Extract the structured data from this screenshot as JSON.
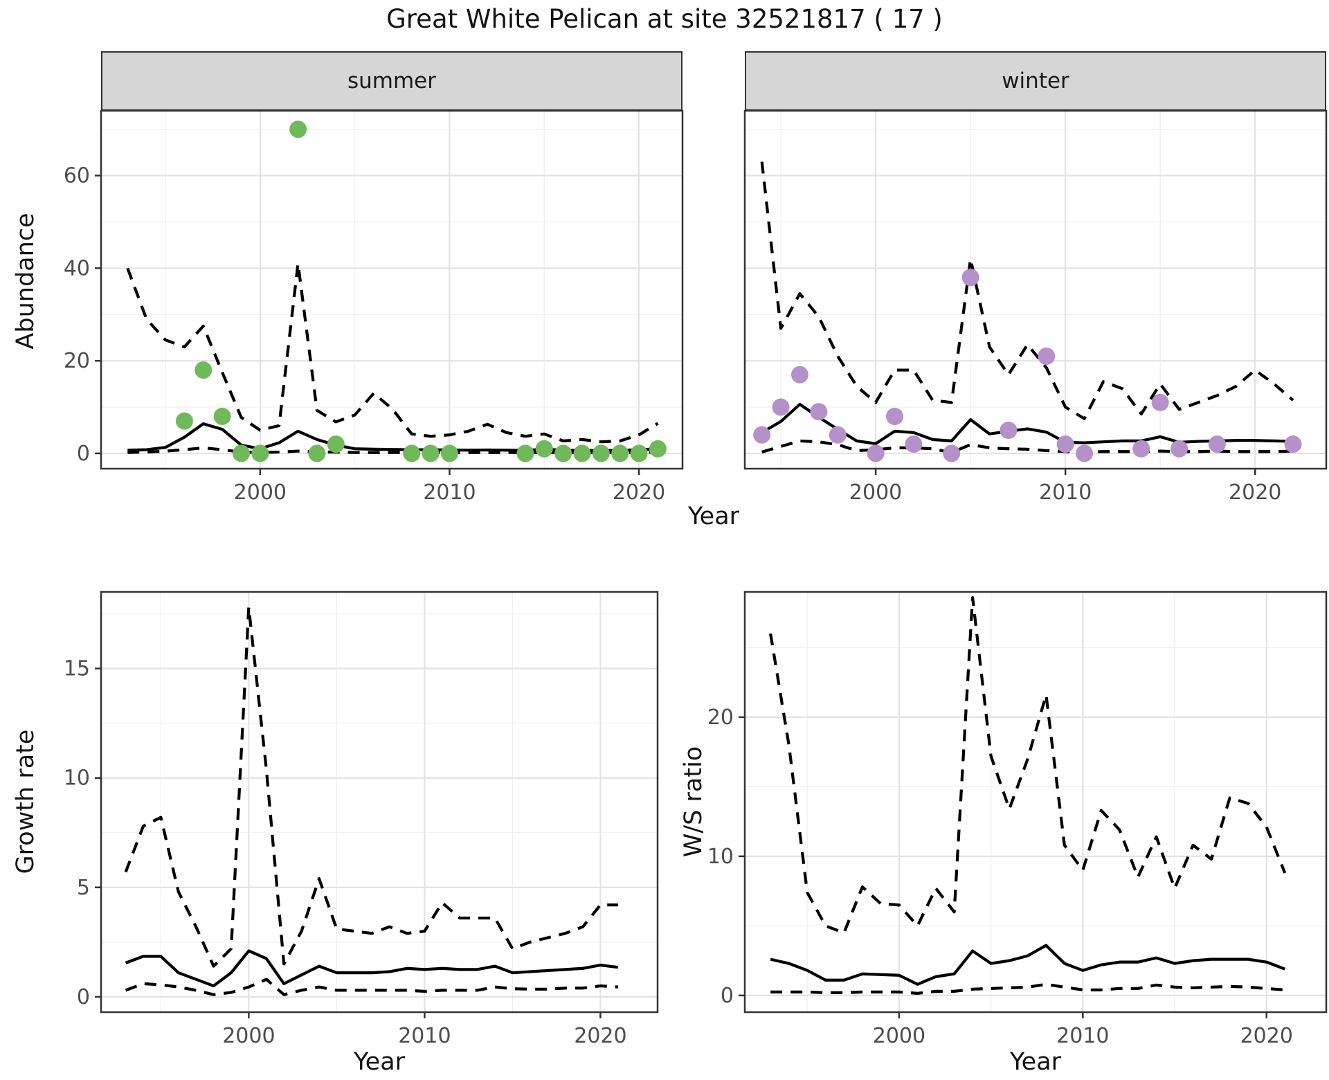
{
  "title": "Great White Pelican at site 32521817 ( 17 )",
  "colors": {
    "summer_point": "#70b95a",
    "winter_point": "#b491c8",
    "line": "#000000",
    "strip_background": "#d6d6d6",
    "panel_border": "#333333",
    "grid_major": "#e3e3e3",
    "grid_minor": "#f0f0f0",
    "tick_text": "#4d4d4d"
  },
  "chart_data": [
    {
      "id": "abundance-summer",
      "type": "line",
      "facet": "summer",
      "xlabel": "Year",
      "ylabel": "Abundance",
      "grid": true,
      "legend": "none",
      "x_range": [
        1991.6,
        2022.3
      ],
      "y_range": [
        -3.3,
        74.0
      ],
      "x_ticks": [
        2000,
        2010,
        2020
      ],
      "x_minor_ticks": [
        1995,
        2005,
        2015
      ],
      "y_ticks": [
        0,
        20,
        40,
        60
      ],
      "y_minor_ticks": [
        10,
        30,
        50,
        70
      ],
      "years": [
        1993,
        1994,
        1995,
        1996,
        1997,
        1998,
        1999,
        2000,
        2001,
        2002,
        2003,
        2004,
        2005,
        2006,
        2007,
        2008,
        2009,
        2010,
        2011,
        2012,
        2013,
        2014,
        2015,
        2016,
        2017,
        2018,
        2019,
        2020,
        2021
      ],
      "series": [
        {
          "name": "estimated-mean",
          "style": "solid",
          "values": [
            0.7,
            0.8,
            1.3,
            3.5,
            6.4,
            5.2,
            1.8,
            1.0,
            2.3,
            4.8,
            3.0,
            1.8,
            1.0,
            0.9,
            0.85,
            0.8,
            0.8,
            0.75,
            0.7,
            0.75,
            0.7,
            0.65,
            0.9,
            0.7,
            0.65,
            0.65,
            0.65,
            0.8,
            1.0
          ]
        },
        {
          "name": "upper-credible-interval",
          "style": "dashed",
          "values": [
            40,
            29,
            24.5,
            23,
            27.5,
            17.5,
            7.8,
            5,
            6,
            41,
            9.3,
            6.8,
            8.3,
            13,
            9.5,
            4.2,
            3.7,
            4.0,
            4.8,
            6.3,
            4.5,
            3.7,
            4.2,
            2.7,
            3.0,
            2.5,
            2.7,
            4.0,
            6.5
          ]
        },
        {
          "name": "lower-credible-interval",
          "style": "dashed",
          "values": [
            0.2,
            0.3,
            0.5,
            0.8,
            1.2,
            0.8,
            0.3,
            0.2,
            0.3,
            0.5,
            0.3,
            0.3,
            0.2,
            0.2,
            0.2,
            0.2,
            0.2,
            0.2,
            0.2,
            0.2,
            0.2,
            0.2,
            0.2,
            0.2,
            0.2,
            0.2,
            0.2,
            0.2,
            0.3
          ]
        }
      ],
      "points": {
        "name": "observed-summer-counts",
        "color_key": "summer_point",
        "data": [
          [
            1996,
            7
          ],
          [
            1997,
            18
          ],
          [
            1998,
            8
          ],
          [
            1999,
            0
          ],
          [
            2000,
            0
          ],
          [
            2002,
            70
          ],
          [
            2003,
            0
          ],
          [
            2004,
            2
          ],
          [
            2008,
            0
          ],
          [
            2009,
            0
          ],
          [
            2010,
            0
          ],
          [
            2014,
            0
          ],
          [
            2015,
            1
          ],
          [
            2016,
            0
          ],
          [
            2017,
            0
          ],
          [
            2018,
            0
          ],
          [
            2019,
            0
          ],
          [
            2020,
            0
          ],
          [
            2021,
            1
          ]
        ]
      }
    },
    {
      "id": "abundance-winter",
      "type": "line",
      "facet": "winter",
      "xlabel": "Year",
      "ylabel": "",
      "grid": true,
      "legend": "none",
      "x_range": [
        1993.1,
        2023.75
      ],
      "y_range": [
        -3.3,
        74.0
      ],
      "x_ticks": [
        2000,
        2010,
        2020
      ],
      "x_minor_ticks": [
        1995,
        2005,
        2015
      ],
      "y_ticks": [
        0,
        20,
        40,
        60
      ],
      "y_minor_ticks": [
        10,
        30,
        50,
        70
      ],
      "years": [
        1994,
        1995,
        1996,
        1997,
        1998,
        1999,
        2000,
        2001,
        2002,
        2003,
        2004,
        2005,
        2006,
        2007,
        2008,
        2009,
        2010,
        2011,
        2012,
        2013,
        2014,
        2015,
        2016,
        2017,
        2018,
        2019,
        2020,
        2021,
        2022
      ],
      "series": [
        {
          "name": "estimated-mean",
          "style": "solid",
          "values": [
            4.5,
            6.9,
            10.6,
            7.8,
            5.2,
            2.7,
            2.1,
            4.8,
            4.5,
            3.0,
            2.7,
            7.3,
            4.2,
            4.8,
            5.3,
            4.6,
            2.4,
            2.3,
            2.5,
            2.7,
            2.7,
            3.6,
            2.4,
            2.6,
            2.7,
            2.8,
            2.8,
            2.7,
            2.6
          ]
        },
        {
          "name": "upper-credible-interval",
          "style": "dashed",
          "values": [
            63,
            27,
            34.5,
            29.5,
            21,
            14.5,
            11,
            18,
            18,
            11.5,
            11,
            42,
            23,
            17,
            23.5,
            18.5,
            10,
            7.5,
            15.5,
            14,
            8.5,
            15,
            9.5,
            11,
            12.5,
            14.5,
            18,
            15,
            11.5
          ]
        },
        {
          "name": "lower-credible-interval",
          "style": "dashed",
          "values": [
            0.3,
            1.5,
            2.7,
            2.5,
            1.9,
            0.6,
            0.8,
            1.2,
            1.2,
            1.0,
            0.2,
            1.9,
            1.2,
            1.0,
            0.9,
            0.6,
            0.4,
            0.3,
            0.4,
            0.4,
            0.4,
            0.5,
            0.4,
            0.4,
            0.5,
            0.4,
            0.4,
            0.4,
            0.5
          ]
        }
      ],
      "points": {
        "name": "observed-winter-counts",
        "color_key": "winter_point",
        "data": [
          [
            1994,
            4
          ],
          [
            1995,
            10
          ],
          [
            1996,
            17
          ],
          [
            1997,
            9
          ],
          [
            1998,
            4
          ],
          [
            2000,
            0
          ],
          [
            2001,
            8
          ],
          [
            2002,
            2
          ],
          [
            2004,
            0
          ],
          [
            2005,
            38
          ],
          [
            2007,
            5
          ],
          [
            2009,
            21
          ],
          [
            2010,
            2
          ],
          [
            2011,
            0
          ],
          [
            2014,
            1
          ],
          [
            2015,
            11
          ],
          [
            2016,
            1
          ],
          [
            2018,
            2
          ],
          [
            2022,
            2
          ]
        ]
      }
    },
    {
      "id": "growth-rate",
      "type": "line",
      "facet": "",
      "xlabel": "Year",
      "ylabel": "Growth rate",
      "grid": true,
      "legend": "none",
      "x_range": [
        1991.6,
        2023.25
      ],
      "y_range": [
        -0.7,
        18.5
      ],
      "x_ticks": [
        2000,
        2010,
        2020
      ],
      "x_minor_ticks": [
        1995,
        2005,
        2015
      ],
      "y_ticks": [
        0,
        5,
        10,
        15
      ],
      "y_minor_ticks": [
        2.5,
        7.5,
        12.5,
        17.5
      ],
      "years": [
        1993,
        1994,
        1995,
        1996,
        1997,
        1998,
        1999,
        2000,
        2001,
        2002,
        2003,
        2004,
        2005,
        2006,
        2007,
        2008,
        2009,
        2010,
        2011,
        2012,
        2013,
        2014,
        2015,
        2016,
        2017,
        2018,
        2019,
        2020,
        2021
      ],
      "series": [
        {
          "name": "estimated-mean",
          "style": "solid",
          "values": [
            1.55,
            1.85,
            1.85,
            1.1,
            0.8,
            0.5,
            1.1,
            2.1,
            1.75,
            0.6,
            1.0,
            1.4,
            1.1,
            1.1,
            1.1,
            1.15,
            1.3,
            1.25,
            1.3,
            1.25,
            1.25,
            1.4,
            1.1,
            1.15,
            1.2,
            1.25,
            1.3,
            1.45,
            1.35
          ]
        },
        {
          "name": "upper-credible-interval",
          "style": "dashed",
          "values": [
            5.7,
            7.8,
            8.2,
            4.8,
            3.2,
            1.4,
            2.2,
            17.8,
            10.4,
            1.5,
            3.0,
            5.4,
            3.1,
            3.0,
            2.9,
            3.2,
            2.9,
            3.0,
            4.3,
            3.6,
            3.6,
            3.6,
            2.2,
            2.5,
            2.7,
            2.9,
            3.2,
            4.2,
            4.2
          ]
        },
        {
          "name": "lower-credible-interval",
          "style": "dashed",
          "values": [
            0.3,
            0.6,
            0.55,
            0.45,
            0.3,
            0.1,
            0.2,
            0.45,
            0.8,
            0.1,
            0.3,
            0.45,
            0.3,
            0.3,
            0.3,
            0.3,
            0.3,
            0.25,
            0.3,
            0.3,
            0.3,
            0.45,
            0.37,
            0.35,
            0.35,
            0.4,
            0.4,
            0.5,
            0.45
          ]
        }
      ],
      "points": null
    },
    {
      "id": "ws-ratio",
      "type": "line",
      "facet": "",
      "xlabel": "Year",
      "ylabel": "W/S ratio",
      "grid": true,
      "legend": "none",
      "x_range": [
        1991.6,
        2023.25
      ],
      "y_range": [
        -1.2,
        29.0
      ],
      "x_ticks": [
        2000,
        2010,
        2020
      ],
      "x_minor_ticks": [
        1995,
        2005,
        2015
      ],
      "y_ticks": [
        0,
        10,
        20
      ],
      "y_minor_ticks": [
        5,
        15,
        25
      ],
      "years": [
        1993,
        1994,
        1995,
        1996,
        1997,
        1998,
        1999,
        2000,
        2001,
        2002,
        2003,
        2004,
        2005,
        2006,
        2007,
        2008,
        2009,
        2010,
        2011,
        2012,
        2013,
        2014,
        2015,
        2016,
        2017,
        2018,
        2019,
        2020,
        2021
      ],
      "series": [
        {
          "name": "estimated-mean",
          "style": "solid",
          "values": [
            2.6,
            2.3,
            1.8,
            1.1,
            1.1,
            1.55,
            1.5,
            1.45,
            0.8,
            1.35,
            1.55,
            3.2,
            2.3,
            2.5,
            2.85,
            3.6,
            2.3,
            1.8,
            2.2,
            2.4,
            2.4,
            2.7,
            2.3,
            2.5,
            2.6,
            2.6,
            2.6,
            2.4,
            1.9
          ]
        },
        {
          "name": "upper-credible-interval",
          "style": "dashed",
          "values": [
            26,
            18,
            7.4,
            5.0,
            4.5,
            7.8,
            6.6,
            6.5,
            5.0,
            7.7,
            6.0,
            28.6,
            17.2,
            13.4,
            17.0,
            21.6,
            10.8,
            9.0,
            13.3,
            11.9,
            8.5,
            11.4,
            7.7,
            10.8,
            9.8,
            14.2,
            13.8,
            12.1,
            8.8
          ]
        },
        {
          "name": "lower-credible-interval",
          "style": "dashed",
          "values": [
            0.25,
            0.25,
            0.25,
            0.2,
            0.2,
            0.25,
            0.25,
            0.25,
            0.15,
            0.3,
            0.3,
            0.45,
            0.5,
            0.55,
            0.6,
            0.8,
            0.6,
            0.4,
            0.4,
            0.5,
            0.5,
            0.75,
            0.6,
            0.55,
            0.6,
            0.65,
            0.6,
            0.5,
            0.4
          ]
        }
      ],
      "points": null
    }
  ]
}
